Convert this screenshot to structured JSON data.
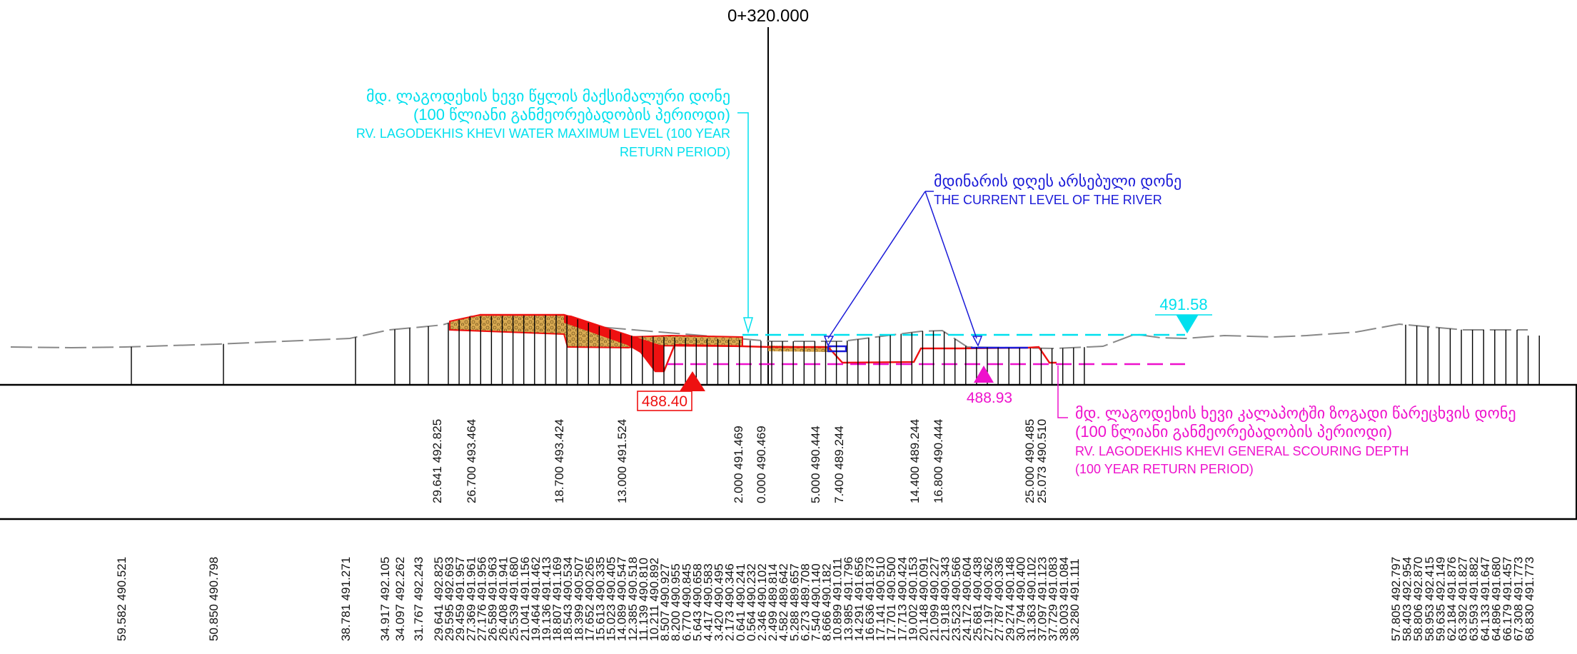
{
  "station_label": "0+320.000",
  "colors": {
    "ink": "#000000",
    "terrain": "#888888",
    "cyan": "#00e0ee",
    "blue": "#1a1ad8",
    "red": "#ee1111",
    "magenta": "#ee11cc",
    "fill": "#d4a64a"
  },
  "annotations": {
    "max_level": {
      "line1": "მდ. ლაგოდეხის ხევი წყლის მაქსიმალური დონე",
      "line2": "(100 წლიანი განმეორებადობის პერიოდი)",
      "line3": "RV. LAGODEKHIS KHEVI  WATER MAXIMUM LEVEL (100 YEAR",
      "line4": "RETURN PERIOD)"
    },
    "current_level": {
      "line1": "მდინარის დღეს არსებული დონე",
      "line2": "THE CURRENT LEVEL OF THE RIVER"
    },
    "scouring": {
      "line1": "მდ. ლაგოდეხის ხევი კალაპოტში ზოგადი წარეცხვის დონე",
      "line2": "(100 წლიანი განმეორებადობის პერიოდი)",
      "line3": "RV. LAGODEKHIS KHEVI GENERAL SCOURING DEPTH",
      "line4": "(100 YEAR RETURN PERIOD)"
    }
  },
  "level_marks": {
    "water_max": "491.58",
    "bed_bottom": "488.40",
    "scour": "488.93"
  },
  "upper_columns": [
    "29.641  492.825",
    "26.700  493.464",
    "18.700  493.424",
    "13.000  491.524",
    "2.000  491.469",
    "0.000  490.469",
    "5.000  490.444",
    "7.400  489.244",
    "14.400  489.244",
    "16.800  490.444",
    "25.000  490.485",
    "25.073  490.510"
  ],
  "lower_columns": [
    "59.582  490.521",
    "50.850  490.798",
    "38.781  491.271",
    "34.917  492.105",
    "34.097  492.262",
    "31.767  492.243",
    "29.641  492.825",
    "29.595  492.693",
    "29.459  491.957",
    "27.369  491.961",
    "27.176  491.956",
    "26.589  491.963",
    "26.408  491.941",
    "25.539  491.680",
    "21.041  491.156",
    "19.464  491.462",
    "19.136  491.413",
    "18.807  491.169",
    "18.543  490.534",
    "18.399  490.507",
    "17.652  490.265",
    "15.613  490.335",
    "15.023  490.405",
    "14.089  490.547",
    "12.385  490.518",
    "11.139  490.810",
    "10.211  490.892",
    "8.507  490.927",
    "8.200  490.955",
    "6.770  490.845",
    "5.643  490.658",
    "4.417  490.583",
    "3.420  490.495",
    "2.173  490.346",
    "0.641  490.241",
    "0.564  490.232",
    "2.346  490.102",
    "2.499  489.814",
    "4.582  489.642",
    "5.288  489.657",
    "6.273  489.708",
    "7.540  490.140",
    "8.666  490.182",
    "10.899  491.011",
    "13.985  491.796",
    "14.291  491.656",
    "16.636  491.873",
    "17.141  490.510",
    "17.701  490.500",
    "17.713  490.424",
    "19.002  490.153",
    "20.148  490.091",
    "21.099  490.227",
    "21.918  490.343",
    "23.523  490.566",
    "24.172  490.604",
    "25.681  490.438",
    "27.197  490.362",
    "27.787  490.336",
    "29.274  490.148",
    "30.794  490.400",
    "31.363  490.102",
    "37.097  491.123",
    "37.729  491.083",
    "38.003  491.084",
    "38.280  491.111",
    "57.805  492.797",
    "58.403  492.954",
    "58.806  492.870",
    "58.953  492.415",
    "59.635  492.149",
    "62.184  491.876",
    "63.392  491.827",
    "63.593  491.882",
    "64.133  491.647",
    "64.896  491.680",
    "66.179  491.457",
    "67.308  491.773",
    "68.830  491.773"
  ]
}
